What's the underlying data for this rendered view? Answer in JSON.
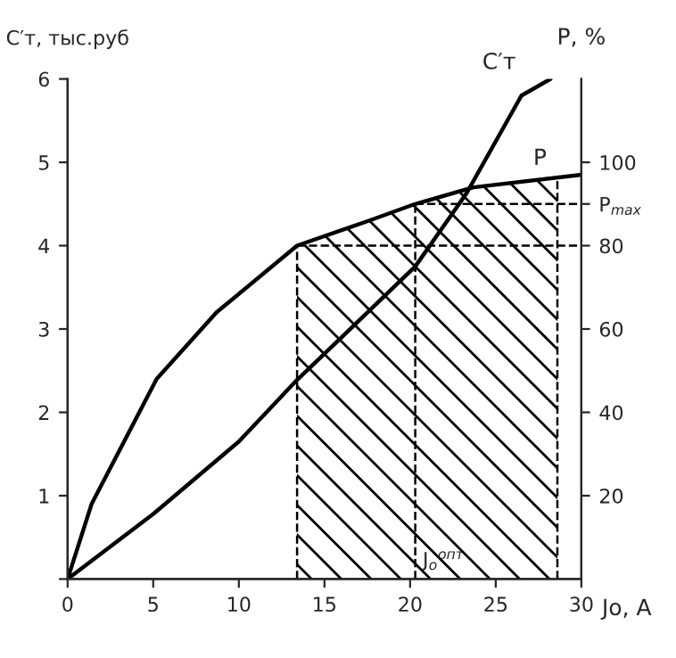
{
  "chart_data": {
    "type": "line",
    "xlabel": "Jо, А",
    "ylabel": "C′т, тыс.руб",
    "y2label": "P, %",
    "series": [
      {
        "name": "C′т",
        "color": "#000000",
        "x": [
          0,
          5,
          10,
          13.4,
          16.2,
          20.3,
          23.3,
          26.5,
          28.2
        ],
        "values": [
          0,
          0.78,
          1.65,
          2.39,
          2.94,
          3.75,
          4.63,
          5.8,
          6.0
        ]
      },
      {
        "name": "P",
        "color": "#000000",
        "axis": "y2",
        "x": [
          0,
          1.4,
          5.2,
          8.7,
          13.4,
          17.6,
          20.3,
          23.7,
          30
        ],
        "values": [
          0,
          18,
          48,
          64,
          80,
          86,
          90,
          94,
          97
        ]
      }
    ],
    "xlim": [
      0,
      30
    ],
    "xticks": [
      0,
      5,
      10,
      15,
      20,
      25,
      30
    ],
    "ylim": [
      0,
      6
    ],
    "yticks": [
      {
        "value": 0,
        "label": null
      },
      1,
      2,
      3,
      4,
      5,
      6
    ],
    "y2lim": [
      0,
      120
    ],
    "y2ticks": [
      20,
      40,
      60,
      80,
      {
        "value": 90,
        "label": "P$_{max}$"
      },
      100
    ],
    "ref_lines": [
      {
        "axis": "x",
        "value": 13.4,
        "line_style": "dashed"
      },
      {
        "axis": "x",
        "value": 20.3,
        "line_style": "dashed"
      },
      {
        "axis": "x",
        "value": 28.6,
        "line_style": "dashed"
      },
      {
        "axis": "y2",
        "value": 80,
        "line_style": "dashed"
      },
      {
        "axis": "y2",
        "value": 90,
        "line_style": "dashed"
      }
    ],
    "bands": [
      {
        "axis": "x",
        "from": 13.4,
        "to": 28.6
      }
    ],
    "annotations": [
      {
        "text": "J$_{о}$$^{опт}$",
        "x": 20.3,
        "y": 0
      }
    ],
    "grid": false,
    "marker": "none",
    "line_style": "solid"
  }
}
